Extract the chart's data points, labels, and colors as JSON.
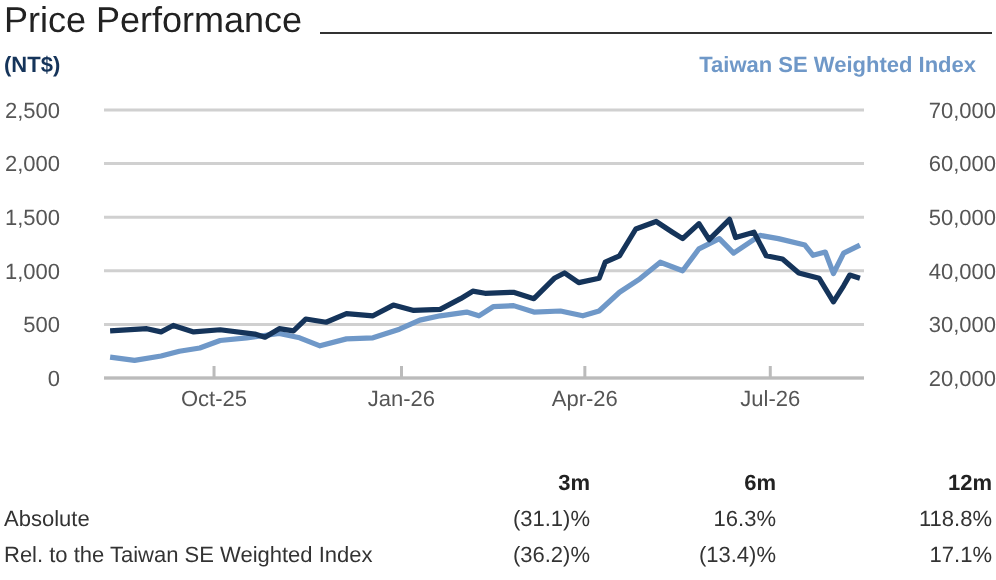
{
  "chart_data": {
    "type": "line",
    "title": "Price Performance",
    "ylabel": "(NT$)",
    "y2label": "Taiwan SE Weighted Index",
    "xlim": [
      "2025-08-08",
      "2026-08-16"
    ],
    "xticks": [
      {
        "value": "2025-10-01",
        "label": "Oct-25"
      },
      {
        "value": "2026-01-01",
        "label": "Jan-26"
      },
      {
        "value": "2026-04-01",
        "label": "Apr-26"
      },
      {
        "value": "2026-07-01",
        "label": "Jul-26"
      }
    ],
    "ylim": [
      0,
      2500
    ],
    "yticks": [
      0,
      500,
      {
        "value": 1000,
        "label": "1,000"
      },
      {
        "value": 1500,
        "label": "1,500"
      },
      {
        "value": 2000,
        "label": "2,000"
      },
      {
        "value": 2500,
        "label": "2,500"
      }
    ],
    "y2lim": [
      20000,
      70000
    ],
    "y2ticks": [
      {
        "value": 20000,
        "label": "20,000"
      },
      {
        "value": 30000,
        "label": "30,000"
      },
      {
        "value": 40000,
        "label": "40,000"
      },
      {
        "value": 50000,
        "label": "50,000"
      },
      {
        "value": 60000,
        "label": "60,000"
      },
      {
        "value": 70000,
        "label": "70,000"
      }
    ],
    "grid": "y",
    "marker": "none",
    "line_style": "solid",
    "series": [
      {
        "color": "#6f98c8",
        "axis": "y2",
        "x": [
          "2025-08-11",
          "2025-08-23",
          "2025-09-05",
          "2025-09-14",
          "2025-09-24",
          "2025-10-04",
          "2025-10-17",
          "2025-11-02",
          "2025-11-12",
          "2025-11-22",
          "2025-12-05",
          "2025-12-18",
          "2025-12-31",
          "2026-01-10",
          "2026-01-20",
          "2026-02-02",
          "2026-02-08",
          "2026-02-15",
          "2026-02-25",
          "2026-03-07",
          "2026-03-20",
          "2026-03-31",
          "2026-04-08",
          "2026-04-18",
          "2026-04-28",
          "2026-05-08",
          "2026-05-19",
          "2026-05-27",
          "2026-06-06",
          "2026-06-13",
          "2026-06-26",
          "2026-07-05",
          "2026-07-18",
          "2026-07-22",
          "2026-07-28",
          "2026-08-01",
          "2026-08-06",
          "2026-08-14"
        ],
        "values": [
          23900,
          23300,
          24100,
          25000,
          25600,
          27000,
          27500,
          28300,
          27500,
          26000,
          27300,
          27500,
          29100,
          30800,
          31600,
          32300,
          31600,
          33300,
          33500,
          32300,
          32500,
          31600,
          32500,
          36000,
          38500,
          41600,
          40000,
          44100,
          46000,
          43300,
          46600,
          46000,
          44800,
          42900,
          43500,
          39500,
          43300,
          44800
        ]
      },
      {
        "color": "#15345a",
        "axis": "y",
        "x": [
          "2025-08-11",
          "2025-08-29",
          "2025-09-05",
          "2025-09-11",
          "2025-09-21",
          "2025-10-04",
          "2025-10-21",
          "2025-10-26",
          "2025-11-02",
          "2025-11-09",
          "2025-11-15",
          "2025-11-25",
          "2025-12-05",
          "2025-12-18",
          "2025-12-28",
          "2026-01-07",
          "2026-01-20",
          "2026-01-30",
          "2026-02-05",
          "2026-02-11",
          "2026-02-25",
          "2026-03-07",
          "2026-03-17",
          "2026-03-22",
          "2026-03-29",
          "2026-04-08",
          "2026-04-11",
          "2026-04-18",
          "2026-04-26",
          "2026-05-06",
          "2026-05-14",
          "2026-05-19",
          "2026-05-27",
          "2026-06-01",
          "2026-06-11",
          "2026-06-14",
          "2026-06-23",
          "2026-06-29",
          "2026-07-07",
          "2026-07-15",
          "2026-07-25",
          "2026-08-01",
          "2026-08-06",
          "2026-08-09",
          "2026-08-14"
        ],
        "values": [
          440,
          460,
          430,
          490,
          430,
          450,
          410,
          380,
          460,
          440,
          550,
          520,
          600,
          580,
          680,
          630,
          640,
          740,
          810,
          790,
          800,
          740,
          930,
          980,
          890,
          930,
          1080,
          1140,
          1390,
          1460,
          1360,
          1300,
          1440,
          1290,
          1480,
          1310,
          1360,
          1140,
          1110,
          980,
          930,
          710,
          860,
          960,
          930
        ]
      }
    ],
    "annotations": [
      "3m",
      "6m",
      "12m",
      "Absolute",
      "(31.1)%",
      "16.3%",
      "118.8%",
      "Rel. to the Taiwan SE Weighted Index",
      "(36.2)%",
      "(13.4)%",
      "17.1%"
    ]
  }
}
